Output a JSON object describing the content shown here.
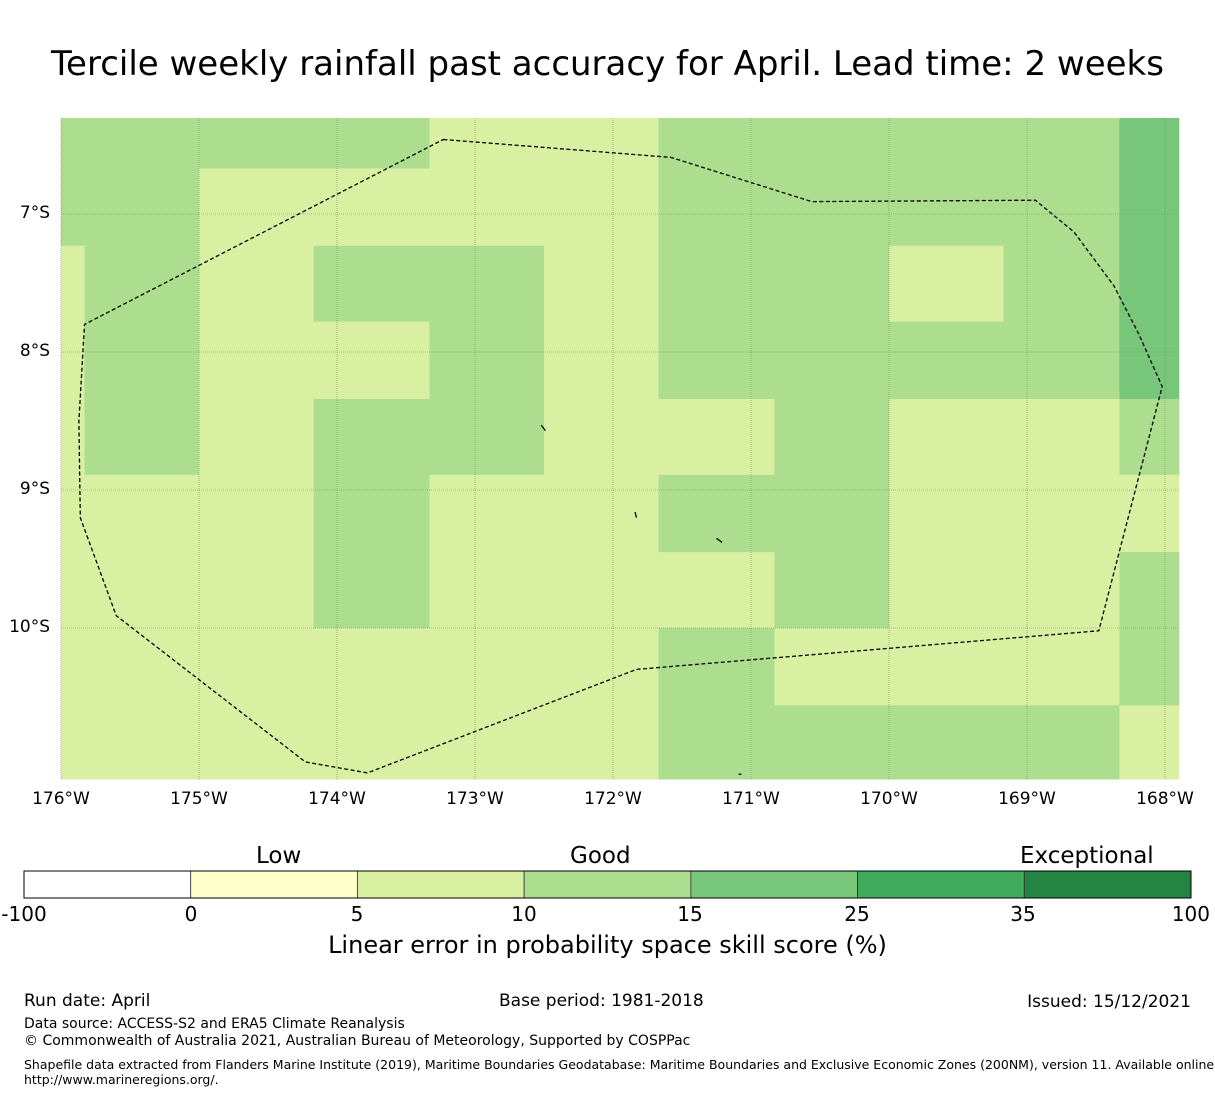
{
  "title": "Tercile weekly rainfall past accuracy for April. Lead time: 2 weeks",
  "map": {
    "lon_labels": [
      "176°W",
      "175°W",
      "174°W",
      "173°W",
      "172°W",
      "171°W",
      "170°W",
      "169°W",
      "168°W"
    ],
    "lat_labels": [
      "7°S",
      "8°S",
      "9°S",
      "10°S"
    ],
    "grid_lines": true,
    "boundary_style": "dashed",
    "cells": [
      {
        "lon": [
          -176.0,
          -175.0
        ],
        "lat": [
          -6.3,
          -7.23
        ],
        "level": 15
      },
      {
        "lon": [
          -175.0,
          -173.33
        ],
        "lat": [
          -6.3,
          -6.67
        ],
        "level": 15
      },
      {
        "lon": [
          -175.0,
          -173.33
        ],
        "lat": [
          -6.67,
          -7.23
        ],
        "level": 10
      },
      {
        "lon": [
          -173.33,
          -171.67
        ],
        "lat": [
          -6.3,
          -7.23
        ],
        "level": 10
      },
      {
        "lon": [
          -171.67,
          -168.33
        ],
        "lat": [
          -6.3,
          -7.23
        ],
        "level": 15
      },
      {
        "lon": [
          -168.33,
          -167.9
        ],
        "lat": [
          -6.3,
          -7.23
        ],
        "level": 25
      },
      {
        "lon": [
          -176.0,
          -175.83
        ],
        "lat": [
          -7.23,
          -8.89
        ],
        "level": 10
      },
      {
        "lon": [
          -175.83,
          -175.0
        ],
        "lat": [
          -7.23,
          -8.89
        ],
        "level": 15
      },
      {
        "lon": [
          -175.0,
          -174.17
        ],
        "lat": [
          -7.23,
          -8.89
        ],
        "level": 10
      },
      {
        "lon": [
          -174.17,
          -172.5
        ],
        "lat": [
          -7.23,
          -7.78
        ],
        "level": 15
      },
      {
        "lon": [
          -174.17,
          -173.33
        ],
        "lat": [
          -7.78,
          -8.34
        ],
        "level": 10
      },
      {
        "lon": [
          -173.33,
          -172.5
        ],
        "lat": [
          -7.78,
          -8.34
        ],
        "level": 15
      },
      {
        "lon": [
          -174.17,
          -172.5
        ],
        "lat": [
          -8.34,
          -8.89
        ],
        "level": 15
      },
      {
        "lon": [
          -172.5,
          -171.67
        ],
        "lat": [
          -7.23,
          -8.89
        ],
        "level": 10
      },
      {
        "lon": [
          -171.67,
          -170.0
        ],
        "lat": [
          -7.23,
          -8.34
        ],
        "level": 15
      },
      {
        "lon": [
          -170.0,
          -169.17
        ],
        "lat": [
          -7.23,
          -7.78
        ],
        "level": 10
      },
      {
        "lon": [
          -169.17,
          -168.33
        ],
        "lat": [
          -7.23,
          -7.78
        ],
        "level": 15
      },
      {
        "lon": [
          -170.0,
          -168.33
        ],
        "lat": [
          -7.78,
          -8.34
        ],
        "level": 15
      },
      {
        "lon": [
          -168.33,
          -167.9
        ],
        "lat": [
          -7.23,
          -8.34
        ],
        "level": 25
      },
      {
        "lon": [
          -171.67,
          -170.83
        ],
        "lat": [
          -8.34,
          -8.89
        ],
        "level": 10
      },
      {
        "lon": [
          -170.83,
          -170.0
        ],
        "lat": [
          -8.34,
          -8.89
        ],
        "level": 15
      },
      {
        "lon": [
          -170.0,
          -168.33
        ],
        "lat": [
          -8.34,
          -8.89
        ],
        "level": 10
      },
      {
        "lon": [
          -168.33,
          -167.9
        ],
        "lat": [
          -8.34,
          -8.89
        ],
        "level": 15
      },
      {
        "lon": [
          -176.0,
          -174.17
        ],
        "lat": [
          -8.89,
          -10.0
        ],
        "level": 10
      },
      {
        "lon": [
          -174.17,
          -173.33
        ],
        "lat": [
          -8.89,
          -10.0
        ],
        "level": 15
      },
      {
        "lon": [
          -173.33,
          -171.67
        ],
        "lat": [
          -8.89,
          -10.0
        ],
        "level": 10
      },
      {
        "lon": [
          -171.67,
          -170.0
        ],
        "lat": [
          -8.89,
          -9.45
        ],
        "level": 15
      },
      {
        "lon": [
          -171.67,
          -170.83
        ],
        "lat": [
          -9.45,
          -10.0
        ],
        "level": 10
      },
      {
        "lon": [
          -170.83,
          -170.0
        ],
        "lat": [
          -9.45,
          -10.0
        ],
        "level": 15
      },
      {
        "lon": [
          -170.0,
          -168.33
        ],
        "lat": [
          -8.89,
          -10.0
        ],
        "level": 10
      },
      {
        "lon": [
          -168.33,
          -167.9
        ],
        "lat": [
          -8.89,
          -9.45
        ],
        "level": 10
      },
      {
        "lon": [
          -168.33,
          -167.9
        ],
        "lat": [
          -9.45,
          -10.0
        ],
        "level": 15
      },
      {
        "lon": [
          -176.0,
          -171.67
        ],
        "lat": [
          -10.0,
          -11.11
        ],
        "level": 10
      },
      {
        "lon": [
          -171.67,
          -170.83
        ],
        "lat": [
          -10.0,
          -11.11
        ],
        "level": 15
      },
      {
        "lon": [
          -170.83,
          -168.33
        ],
        "lat": [
          -10.0,
          -10.56
        ],
        "level": 10
      },
      {
        "lon": [
          -170.83,
          -168.33
        ],
        "lat": [
          -10.56,
          -11.11
        ],
        "level": 15
      },
      {
        "lon": [
          -168.33,
          -167.9
        ],
        "lat": [
          -10.0,
          -10.56
        ],
        "level": 15
      },
      {
        "lon": [
          -168.33,
          -167.9
        ],
        "lat": [
          -10.56,
          -11.11
        ],
        "level": 10
      }
    ],
    "eez_boundary": [
      [
        -173.23,
        -6.46
      ],
      [
        -171.58,
        -6.59
      ],
      [
        -170.56,
        -6.91
      ],
      [
        -168.94,
        -6.9
      ],
      [
        -168.66,
        -7.13
      ],
      [
        -168.37,
        -7.52
      ],
      [
        -168.19,
        -7.87
      ],
      [
        -168.02,
        -8.25
      ],
      [
        -168.48,
        -10.02
      ],
      [
        -171.83,
        -10.3
      ],
      [
        -173.78,
        -11.05
      ],
      [
        -174.23,
        -10.97
      ],
      [
        -175.6,
        -9.91
      ],
      [
        -175.86,
        -9.2
      ],
      [
        -175.87,
        -8.5
      ],
      [
        -175.83,
        -7.8
      ],
      [
        -173.23,
        -6.46
      ]
    ],
    "islands": [
      [
        [
          -172.52,
          -8.53
        ],
        [
          -172.49,
          -8.57
        ]
      ],
      [
        [
          -171.84,
          -9.16
        ],
        [
          -171.83,
          -9.2
        ]
      ],
      [
        [
          -171.25,
          -9.35
        ],
        [
          -171.21,
          -9.38
        ]
      ],
      [
        [
          -171.09,
          -11.06
        ],
        [
          -171.07,
          -11.06
        ]
      ]
    ]
  },
  "colorbar": {
    "headers": [
      "Low",
      "Good",
      "Exceptional"
    ],
    "ticks": [
      "-100",
      "0",
      "5",
      "10",
      "15",
      "25",
      "35",
      "100"
    ],
    "colors": [
      "#ffffff",
      "#ffffcc",
      "#d9f0a3",
      "#addd8e",
      "#78c679",
      "#41ab5d",
      "#238443"
    ],
    "label": "Linear error in probability space skill score (%)"
  },
  "footer": {
    "run_date": "Run date: April",
    "base_period": "Base period: 1981-2018",
    "issued": "Issued: 15/12/2021",
    "data_source": "Data source: ACCESS-S2 and ERA5 Climate Reanalysis",
    "copyright": "© Commonwealth of Australia 2021, Australian Bureau of Meteorology, Supported by COSPPac",
    "shapefile_line1": "Shapefile data extracted from Flanders Marine Institute (2019), Maritime Boundaries Geodatabase: Maritime Boundaries and Exclusive Economic Zones (200NM), version 11. Available online at",
    "shapefile_line2": "http://www.marineregions.org/."
  }
}
